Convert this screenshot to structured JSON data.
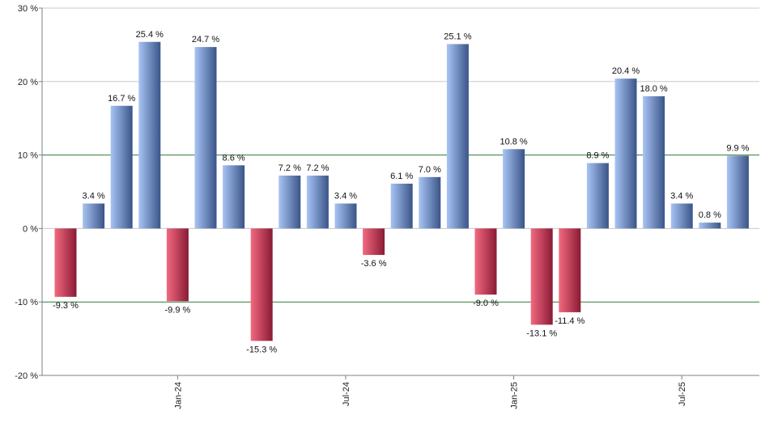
{
  "chart_data": {
    "type": "bar",
    "title": "",
    "xlabel": "",
    "ylabel": "",
    "ylim": [
      -20,
      30
    ],
    "yticks": [
      -20,
      -10,
      0,
      10,
      20,
      30
    ],
    "ytick_labels": [
      "-20 %",
      "-10 %",
      "0 %",
      "10 %",
      "20 %",
      "30 %"
    ],
    "highlight_lines": [
      10,
      -10
    ],
    "values": [
      -9.3,
      3.4,
      16.7,
      25.4,
      -9.9,
      24.7,
      8.6,
      -15.3,
      7.2,
      7.2,
      3.4,
      -3.6,
      6.1,
      7.0,
      25.1,
      -9.0,
      10.8,
      -13.1,
      -11.4,
      8.9,
      20.4,
      18.0,
      3.4,
      0.8,
      9.9
    ],
    "value_labels": [
      "-9.3 %",
      "3.4 %",
      "16.7 %",
      "25.4 %",
      "-9.9 %",
      "24.7 %",
      "8.6 %",
      "-15.3 %",
      "7.2 %",
      "7.2 %",
      "3.4 %",
      "-3.6 %",
      "6.1 %",
      "7.0 %",
      "25.1 %",
      "-9.0 %",
      "10.8 %",
      "-13.1 %",
      "-11.4 %",
      "8.9 %",
      "20.4 %",
      "18.0 %",
      "3.4 %",
      "0.8 %",
      "9.9 %"
    ],
    "x_ticks": [
      {
        "label": "Jan-24",
        "index": 4
      },
      {
        "label": "Jul-24",
        "index": 10
      },
      {
        "label": "Jan-25",
        "index": 16
      },
      {
        "label": "Jul-25",
        "index": 22
      }
    ],
    "colors": {
      "positive_light": "#a8c4f4",
      "positive_dark": "#3a5488",
      "negative_light": "#f26a80",
      "negative_dark": "#8a1a34",
      "grid": "#c8c8c8",
      "highlight": "#2e7d32",
      "axis": "#808080"
    }
  }
}
